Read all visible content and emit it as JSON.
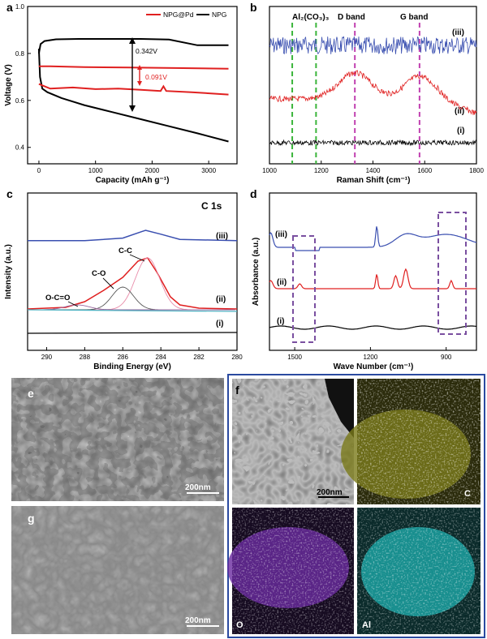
{
  "panel_letters": {
    "a": "a",
    "b": "b",
    "c": "c",
    "d": "d",
    "e": "e",
    "f": "f",
    "g": "g"
  },
  "colors": {
    "npg_pd": "#e02020",
    "npg": "#000000",
    "blue": "#3a4fb0",
    "green": "#3bb53b",
    "magenta": "#c040b0",
    "purple": "#7a4fa0",
    "frame_blue": "#2a4aa0"
  },
  "chart_data": [
    {
      "panel": "a",
      "type": "line",
      "xlabel": "Capacity (mAh g⁻¹)",
      "ylabel": "Voltage (V)",
      "xlim": [
        -200,
        3500
      ],
      "ylim": [
        0.33,
        1.0
      ],
      "xticks": [
        "0",
        "1000",
        "2000",
        "3000"
      ],
      "yticks": [
        "0.4",
        "0.6",
        "0.8",
        "1.0"
      ],
      "legend": [
        "NPG@Pd",
        "NPG"
      ],
      "legend_position": "top-right",
      "series": [
        {
          "name": "NPG",
          "x": [
            0,
            30,
            100,
            300,
            700,
            1200,
            1800,
            2300,
            2800,
            3350
          ],
          "y": [
            0.8,
            0.84,
            0.853,
            0.86,
            0.862,
            0.862,
            0.862,
            0.859,
            0.835,
            0.835
          ]
        },
        {
          "name": "NPG",
          "x": [
            0,
            20,
            60,
            150,
            400,
            800,
            1300,
            1800,
            2300,
            2800,
            3350
          ],
          "y": [
            0.82,
            0.7,
            0.65,
            0.635,
            0.61,
            0.58,
            0.55,
            0.52,
            0.49,
            0.46,
            0.425
          ]
        },
        {
          "name": "NPG@Pd",
          "x": [
            0,
            200,
            800,
            1600,
            2400,
            3350
          ],
          "y": [
            0.745,
            0.745,
            0.742,
            0.74,
            0.738,
            0.735
          ]
        },
        {
          "name": "NPG@Pd",
          "x": [
            0,
            200,
            600,
            1000,
            1400,
            1800,
            2150,
            2200,
            2250,
            2700,
            3350
          ],
          "y": [
            0.67,
            0.65,
            0.655,
            0.648,
            0.65,
            0.645,
            0.64,
            0.66,
            0.64,
            0.635,
            0.625
          ]
        }
      ],
      "annotations": [
        "0.342V",
        "0.091V"
      ]
    },
    {
      "panel": "b",
      "type": "line",
      "xlabel": "Raman Shift (cm⁻¹)",
      "xlim": [
        1000,
        1800
      ],
      "xticks": [
        "1000",
        "1200",
        "1400",
        "1600",
        "1800"
      ],
      "series": [
        {
          "name": "(iii)"
        },
        {
          "name": "(ii)"
        },
        {
          "name": "(i)"
        }
      ],
      "reference_lines": [
        {
          "label": "Al₂(CO₃)₃",
          "x": [
            1088,
            1180
          ]
        },
        {
          "label": "D band",
          "x": 1330
        },
        {
          "label": "G band",
          "x": 1580
        }
      ]
    },
    {
      "panel": "c",
      "type": "line",
      "title": "C 1s",
      "xlabel": "Binding Energy (eV)",
      "ylabel": "Intensity (a.u.)",
      "xlim": [
        291,
        280
      ],
      "xticks": [
        "290",
        "288",
        "286",
        "284",
        "282",
        "280"
      ],
      "series": [
        {
          "name": "(iii)",
          "x": [
            291,
            288,
            286,
            285,
            284.8,
            284,
            283,
            280
          ],
          "y": [
            0.2,
            0.2,
            0.4,
            0.9,
            1.0,
            0.7,
            0.3,
            0.2
          ]
        },
        {
          "name": "(ii)",
          "x": [
            291,
            289,
            288,
            287,
            286,
            285.2,
            284.7,
            284.2,
            283.5,
            283,
            282,
            280
          ],
          "y": [
            0.05,
            0.15,
            0.5,
            1.2,
            2.0,
            3.0,
            3.2,
            2.3,
            0.8,
            0.3,
            0.1,
            0.05
          ]
        },
        {
          "name": "(i)"
        }
      ],
      "peak_labels": [
        {
          "label": "C-C",
          "x": 284.7
        },
        {
          "label": "C-O",
          "x": 286.0
        },
        {
          "label": "O-C=O",
          "x": 288.4
        }
      ]
    },
    {
      "panel": "d",
      "type": "line",
      "xlabel": "Wave Number (cm⁻¹)",
      "ylabel": "Absorbance (a.u.)",
      "xlim": [
        1600,
        780
      ],
      "xticks": [
        "1500",
        "1200",
        "900"
      ],
      "series": [
        {
          "name": "(iii)"
        },
        {
          "name": "(ii)"
        },
        {
          "name": "(i)"
        }
      ]
    }
  ],
  "micrographs": {
    "e": {
      "scale": "200nm"
    },
    "g": {
      "scale": "200nm"
    },
    "f": {
      "scale": "200nm",
      "maps": [
        "C",
        "O",
        "Al"
      ]
    }
  }
}
